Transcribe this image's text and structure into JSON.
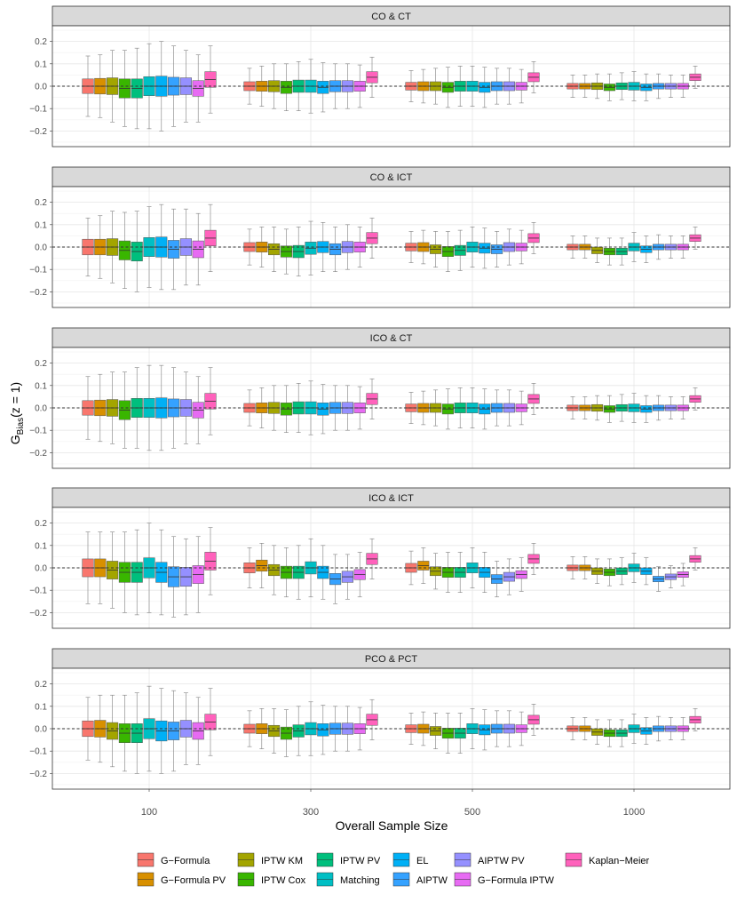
{
  "chart_data": {
    "type": "box",
    "ylabel_main": "G",
    "ylabel_sub": "Bias",
    "ylabel_tail": "(z = 1)",
    "xlabel": "Overall Sample Size",
    "categories": [
      "100",
      "300",
      "500",
      "1000"
    ],
    "ylim": [
      -0.27,
      0.27
    ],
    "yticks": [
      -0.2,
      -0.1,
      0.0,
      0.1,
      0.2
    ],
    "ytick_labels": [
      "−0.2",
      "−0.1",
      "0.0",
      "0.1",
      "0.2"
    ],
    "reference_line": 0,
    "grid": true,
    "legend_position": "bottom",
    "series": [
      {
        "name": "G−Formula",
        "color": "#F8766D"
      },
      {
        "name": "G−Formula PV",
        "color": "#D89000"
      },
      {
        "name": "IPTW KM",
        "color": "#A3A500"
      },
      {
        "name": "IPTW Cox",
        "color": "#39B600"
      },
      {
        "name": "IPTW PV",
        "color": "#00BF7D"
      },
      {
        "name": "Matching",
        "color": "#00BFC4"
      },
      {
        "name": "EL",
        "color": "#00B0F6"
      },
      {
        "name": "AIPTW",
        "color": "#35A2FF"
      },
      {
        "name": "AIPTW PV",
        "color": "#9590FF"
      },
      {
        "name": "G−Formula IPTW",
        "color": "#E76BF3"
      },
      {
        "name": "Kaplan−Meier",
        "color": "#FF62BC"
      }
    ],
    "panels": [
      {
        "title": "CO & CT",
        "groups": [
          {
            "medians": [
              0,
              0,
              0,
              -0.01,
              -0.01,
              0,
              0,
              0,
              0,
              -0.01,
              0.03
            ],
            "iqr": [
              0.065,
              0.07,
              0.075,
              0.085,
              0.085,
              0.085,
              0.09,
              0.08,
              0.075,
              0.07,
              0.07
            ],
            "whisker": [
              0.135,
              0.14,
              0.16,
              0.17,
              0.18,
              0.19,
              0.2,
              0.18,
              0.16,
              0.15,
              0.15
            ]
          },
          {
            "medians": [
              0,
              0,
              0,
              -0.005,
              0,
              0,
              -0.005,
              0,
              0,
              0,
              0.04
            ],
            "iqr": [
              0.04,
              0.045,
              0.05,
              0.055,
              0.055,
              0.055,
              0.055,
              0.05,
              0.05,
              0.045,
              0.05
            ],
            "whisker": [
              0.08,
              0.09,
              0.1,
              0.105,
              0.11,
              0.12,
              0.11,
              0.1,
              0.1,
              0.095,
              0.09
            ]
          },
          {
            "medians": [
              0,
              0,
              0,
              -0.005,
              0,
              0,
              -0.005,
              0,
              0,
              0,
              0.04
            ],
            "iqr": [
              0.035,
              0.04,
              0.04,
              0.045,
              0.045,
              0.045,
              0.045,
              0.04,
              0.04,
              0.035,
              0.04
            ],
            "whisker": [
              0.07,
              0.075,
              0.08,
              0.09,
              0.09,
              0.09,
              0.09,
              0.08,
              0.08,
              0.075,
              0.07
            ]
          },
          {
            "medians": [
              0,
              0,
              0,
              -0.005,
              0,
              0,
              -0.005,
              0,
              0,
              0,
              0.04
            ],
            "iqr": [
              0.025,
              0.025,
              0.03,
              0.03,
              0.03,
              0.035,
              0.03,
              0.025,
              0.025,
              0.025,
              0.03
            ],
            "whisker": [
              0.05,
              0.05,
              0.055,
              0.06,
              0.06,
              0.065,
              0.06,
              0.055,
              0.05,
              0.05,
              0.05
            ]
          }
        ]
      },
      {
        "title": "CO & ICT",
        "groups": [
          {
            "medians": [
              0,
              0,
              0,
              -0.015,
              -0.02,
              0,
              0,
              -0.01,
              0,
              -0.01,
              0.04
            ],
            "iqr": [
              0.07,
              0.07,
              0.075,
              0.085,
              0.085,
              0.085,
              0.09,
              0.08,
              0.075,
              0.075,
              0.07
            ],
            "whisker": [
              0.13,
              0.14,
              0.16,
              0.17,
              0.18,
              0.18,
              0.19,
              0.18,
              0.17,
              0.16,
              0.15
            ]
          },
          {
            "medians": [
              0,
              0,
              -0.01,
              -0.02,
              -0.02,
              -0.005,
              0,
              -0.01,
              0,
              0,
              0.04
            ],
            "iqr": [
              0.04,
              0.045,
              0.05,
              0.05,
              0.055,
              0.055,
              0.05,
              0.05,
              0.05,
              0.045,
              0.05
            ],
            "whisker": [
              0.08,
              0.09,
              0.1,
              0.1,
              0.11,
              0.12,
              0.11,
              0.1,
              0.1,
              0.09,
              0.09
            ]
          },
          {
            "medians": [
              0,
              0,
              -0.01,
              -0.02,
              -0.015,
              0,
              -0.005,
              -0.01,
              0,
              0,
              0.04
            ],
            "iqr": [
              0.035,
              0.04,
              0.04,
              0.045,
              0.045,
              0.045,
              0.045,
              0.04,
              0.04,
              0.035,
              0.04
            ],
            "whisker": [
              0.07,
              0.075,
              0.08,
              0.09,
              0.09,
              0.09,
              0.09,
              0.08,
              0.08,
              0.075,
              0.07
            ]
          },
          {
            "medians": [
              0,
              0,
              -0.015,
              -0.02,
              -0.02,
              0,
              -0.01,
              0,
              0,
              0,
              0.04
            ],
            "iqr": [
              0.025,
              0.025,
              0.03,
              0.03,
              0.03,
              0.035,
              0.03,
              0.025,
              0.025,
              0.025,
              0.03
            ],
            "whisker": [
              0.05,
              0.05,
              0.055,
              0.06,
              0.06,
              0.065,
              0.06,
              0.055,
              0.05,
              0.05,
              0.05
            ]
          }
        ]
      },
      {
        "title": "ICO & CT",
        "groups": [
          {
            "medians": [
              0,
              0,
              0,
              -0.01,
              0,
              0,
              0,
              0,
              0,
              -0.01,
              0.03
            ],
            "iqr": [
              0.065,
              0.07,
              0.075,
              0.085,
              0.085,
              0.085,
              0.09,
              0.08,
              0.075,
              0.07,
              0.07
            ],
            "whisker": [
              0.14,
              0.15,
              0.16,
              0.17,
              0.18,
              0.19,
              0.19,
              0.18,
              0.16,
              0.15,
              0.15
            ]
          },
          {
            "medians": [
              0,
              0,
              0,
              -0.005,
              0,
              0,
              -0.005,
              0,
              0,
              0,
              0.04
            ],
            "iqr": [
              0.04,
              0.045,
              0.05,
              0.055,
              0.055,
              0.055,
              0.055,
              0.05,
              0.05,
              0.045,
              0.05
            ],
            "whisker": [
              0.08,
              0.09,
              0.1,
              0.105,
              0.11,
              0.12,
              0.11,
              0.1,
              0.1,
              0.095,
              0.09
            ]
          },
          {
            "medians": [
              0,
              0,
              0,
              -0.005,
              0,
              0,
              -0.005,
              0,
              0,
              0,
              0.04
            ],
            "iqr": [
              0.035,
              0.04,
              0.04,
              0.045,
              0.045,
              0.045,
              0.045,
              0.04,
              0.04,
              0.035,
              0.04
            ],
            "whisker": [
              0.07,
              0.075,
              0.08,
              0.09,
              0.09,
              0.09,
              0.09,
              0.08,
              0.08,
              0.075,
              0.07
            ]
          },
          {
            "medians": [
              0,
              0,
              0,
              -0.005,
              0,
              0,
              -0.005,
              0,
              0,
              0,
              0.04
            ],
            "iqr": [
              0.025,
              0.025,
              0.03,
              0.03,
              0.03,
              0.035,
              0.03,
              0.025,
              0.025,
              0.025,
              0.03
            ],
            "whisker": [
              0.05,
              0.05,
              0.055,
              0.06,
              0.06,
              0.065,
              0.06,
              0.055,
              0.05,
              0.05,
              0.05
            ]
          }
        ]
      },
      {
        "title": "ICO & ICT",
        "groups": [
          {
            "medians": [
              0,
              0,
              -0.01,
              -0.02,
              -0.02,
              0,
              -0.02,
              -0.04,
              -0.04,
              -0.03,
              0.03
            ],
            "iqr": [
              0.08,
              0.08,
              0.08,
              0.09,
              0.09,
              0.09,
              0.09,
              0.09,
              0.085,
              0.08,
              0.08
            ],
            "whisker": [
              0.16,
              0.16,
              0.17,
              0.18,
              0.19,
              0.2,
              0.19,
              0.18,
              0.17,
              0.17,
              0.15
            ]
          },
          {
            "medians": [
              0,
              0.01,
              -0.01,
              -0.02,
              -0.02,
              0,
              -0.02,
              -0.05,
              -0.04,
              -0.03,
              0.04
            ],
            "iqr": [
              0.045,
              0.05,
              0.05,
              0.055,
              0.055,
              0.055,
              0.055,
              0.05,
              0.05,
              0.045,
              0.05
            ],
            "whisker": [
              0.09,
              0.1,
              0.11,
              0.11,
              0.12,
              0.13,
              0.12,
              0.11,
              0.1,
              0.1,
              0.09
            ]
          },
          {
            "medians": [
              0,
              0.01,
              -0.015,
              -0.02,
              -0.02,
              0,
              -0.02,
              -0.05,
              -0.04,
              -0.03,
              0.04
            ],
            "iqr": [
              0.04,
              0.04,
              0.04,
              0.045,
              0.045,
              0.045,
              0.045,
              0.04,
              0.04,
              0.035,
              0.04
            ],
            "whisker": [
              0.075,
              0.08,
              0.08,
              0.09,
              0.09,
              0.09,
              0.09,
              0.08,
              0.08,
              0.075,
              0.07
            ]
          },
          {
            "medians": [
              0,
              0,
              -0.015,
              -0.02,
              -0.015,
              0,
              -0.015,
              -0.05,
              -0.04,
              -0.03,
              0.04
            ],
            "iqr": [
              0.025,
              0.025,
              0.03,
              0.03,
              0.03,
              0.035,
              0.03,
              0.025,
              0.025,
              0.025,
              0.03
            ],
            "whisker": [
              0.05,
              0.05,
              0.055,
              0.06,
              0.06,
              0.065,
              0.06,
              0.055,
              0.05,
              0.05,
              0.05
            ]
          }
        ]
      },
      {
        "title": "PCO & PCT",
        "groups": [
          {
            "medians": [
              0,
              0,
              -0.01,
              -0.02,
              -0.02,
              0,
              -0.01,
              -0.01,
              0,
              -0.01,
              0.03
            ],
            "iqr": [
              0.07,
              0.075,
              0.075,
              0.085,
              0.085,
              0.09,
              0.09,
              0.08,
              0.075,
              0.075,
              0.07
            ],
            "whisker": [
              0.14,
              0.15,
              0.16,
              0.17,
              0.18,
              0.19,
              0.19,
              0.18,
              0.16,
              0.15,
              0.15
            ]
          },
          {
            "medians": [
              0,
              0,
              -0.01,
              -0.02,
              -0.01,
              0,
              -0.005,
              0,
              0,
              0,
              0.04
            ],
            "iqr": [
              0.04,
              0.045,
              0.05,
              0.055,
              0.055,
              0.055,
              0.055,
              0.05,
              0.05,
              0.045,
              0.05
            ],
            "whisker": [
              0.08,
              0.09,
              0.1,
              0.105,
              0.11,
              0.12,
              0.11,
              0.1,
              0.1,
              0.095,
              0.09
            ]
          },
          {
            "medians": [
              0,
              0,
              -0.01,
              -0.02,
              -0.02,
              0,
              -0.005,
              0,
              0,
              0,
              0.04
            ],
            "iqr": [
              0.035,
              0.04,
              0.04,
              0.045,
              0.045,
              0.045,
              0.045,
              0.04,
              0.04,
              0.035,
              0.04
            ],
            "whisker": [
              0.07,
              0.075,
              0.08,
              0.09,
              0.09,
              0.09,
              0.09,
              0.08,
              0.08,
              0.075,
              0.07
            ]
          },
          {
            "medians": [
              0,
              0,
              -0.015,
              -0.02,
              -0.02,
              0,
              -0.01,
              0,
              0,
              0,
              0.04
            ],
            "iqr": [
              0.025,
              0.025,
              0.03,
              0.03,
              0.03,
              0.035,
              0.03,
              0.025,
              0.025,
              0.025,
              0.03
            ],
            "whisker": [
              0.05,
              0.05,
              0.055,
              0.06,
              0.06,
              0.065,
              0.06,
              0.055,
              0.05,
              0.05,
              0.05
            ]
          }
        ]
      }
    ]
  }
}
